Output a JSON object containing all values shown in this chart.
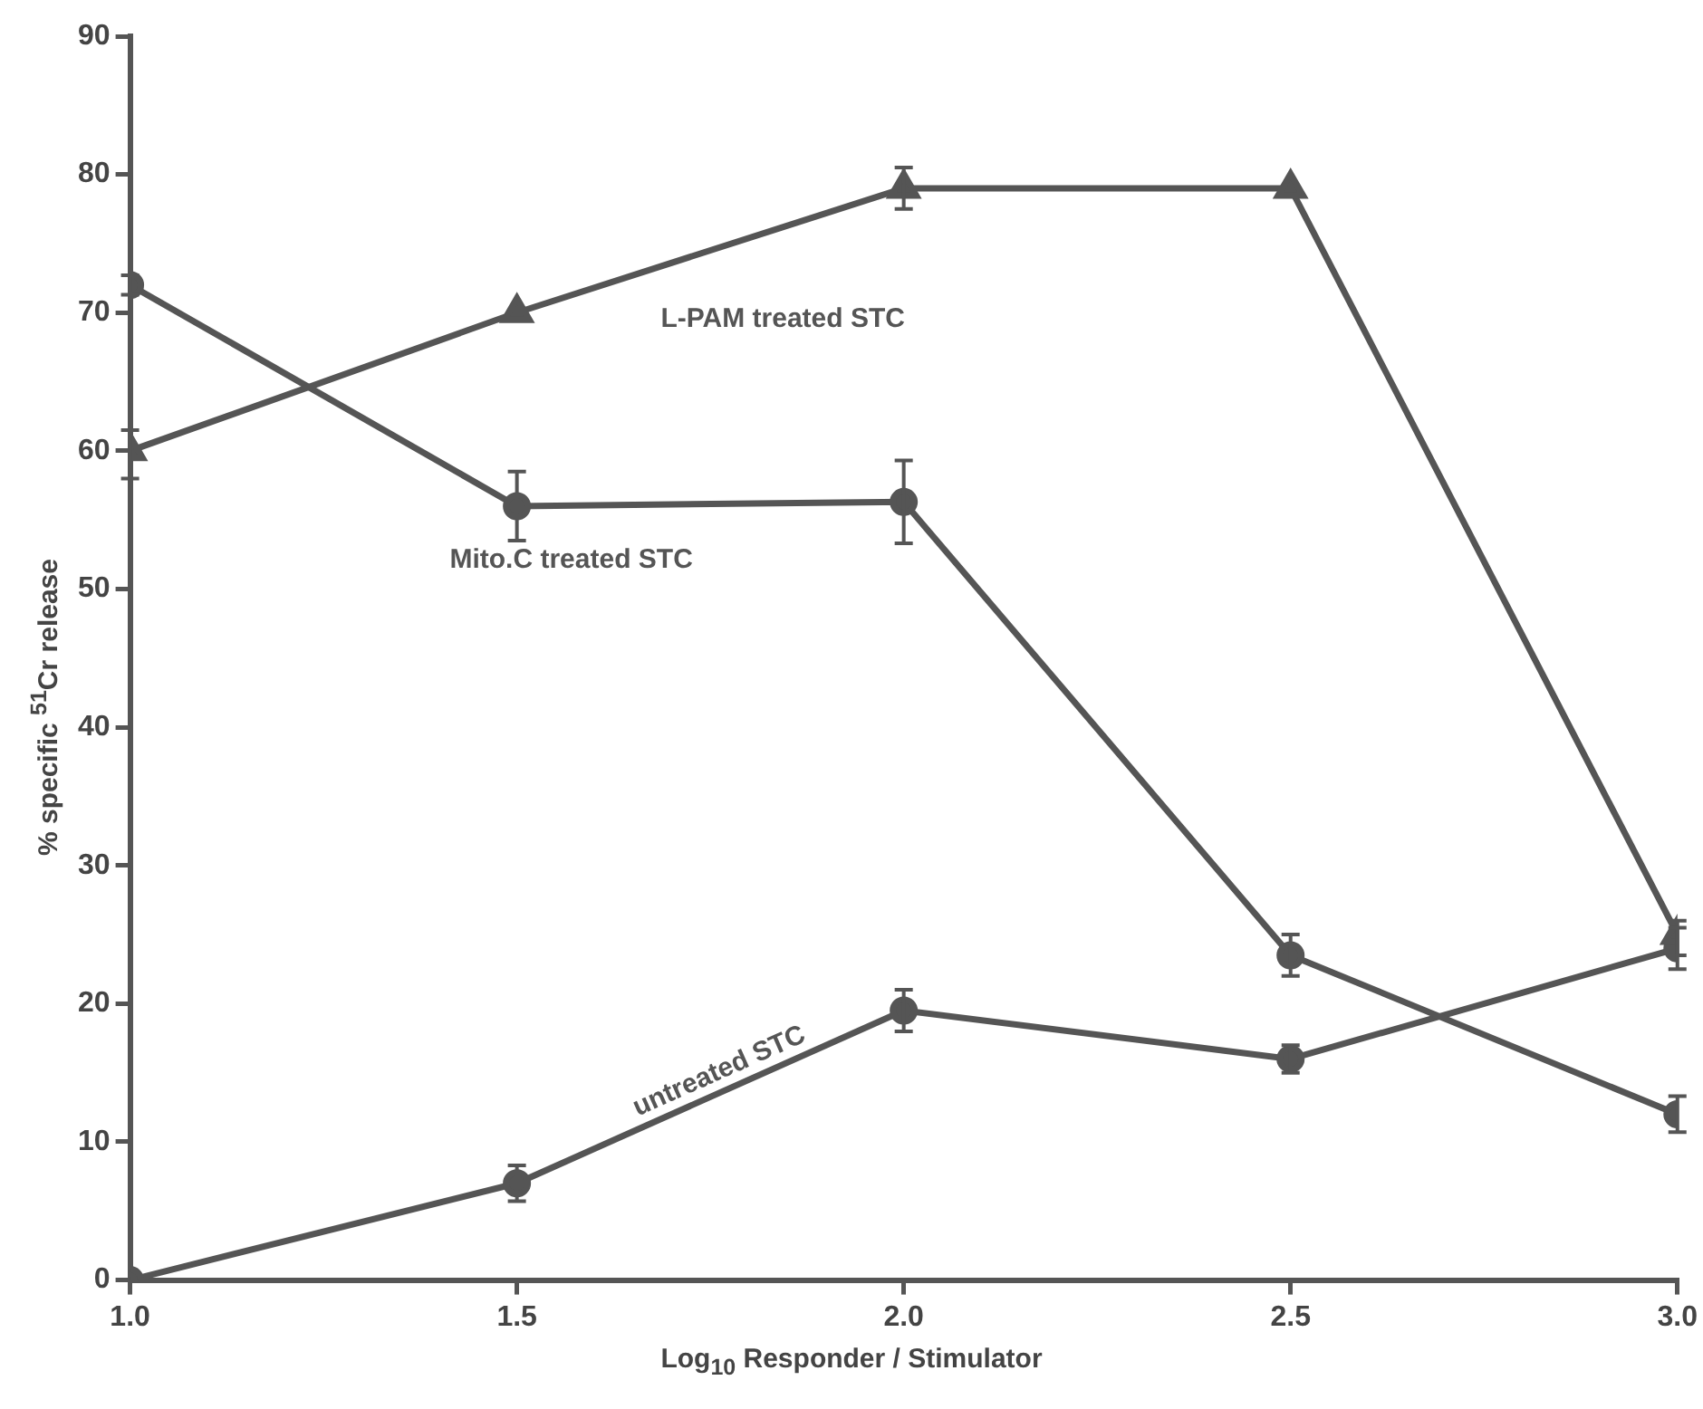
{
  "chart_data": {
    "type": "line",
    "xlabel": "Log$_{10}$ Responder / Stimulator",
    "ylabel": "% specific $^{51}$Cr release",
    "x": [
      1.0,
      1.5,
      2.0,
      2.5,
      3.0
    ],
    "xlim": [
      1.0,
      3.0
    ],
    "xticks": [
      {
        "value": 1.0,
        "label": "1.0"
      },
      1.5,
      {
        "value": 2.0,
        "label": "2.0"
      },
      2.5,
      {
        "value": 3.0,
        "label": "3.0"
      }
    ],
    "ylim": [
      0,
      90
    ],
    "yticks": [
      0,
      10,
      20,
      30,
      40,
      50,
      60,
      70,
      80,
      90
    ],
    "grid": false,
    "legend": false,
    "line_style": "solid",
    "series": [
      {
        "name": "L-PAM treated STC",
        "color": "#555555",
        "marker": "triangle",
        "values": [
          60,
          70,
          79,
          79,
          25
        ],
        "errors": [
          [
            58,
            61.5
          ],
          null,
          [
            77.5,
            80.5
          ],
          null,
          [
            23.5,
            26
          ]
        ]
      },
      {
        "name": "Mito.C treated STC",
        "color": "#555555",
        "marker": "circle",
        "values": [
          72,
          56,
          56.3,
          23.5,
          12
        ],
        "errors": [
          0.7,
          2.5,
          3,
          1.5,
          1.3
        ]
      },
      {
        "name": "untreated STC",
        "color": "#555555",
        "marker": "circle",
        "values": [
          0,
          7,
          19.5,
          16,
          24
        ],
        "errors": [
          null,
          1.3,
          1.5,
          1,
          1.5
        ]
      }
    ]
  }
}
